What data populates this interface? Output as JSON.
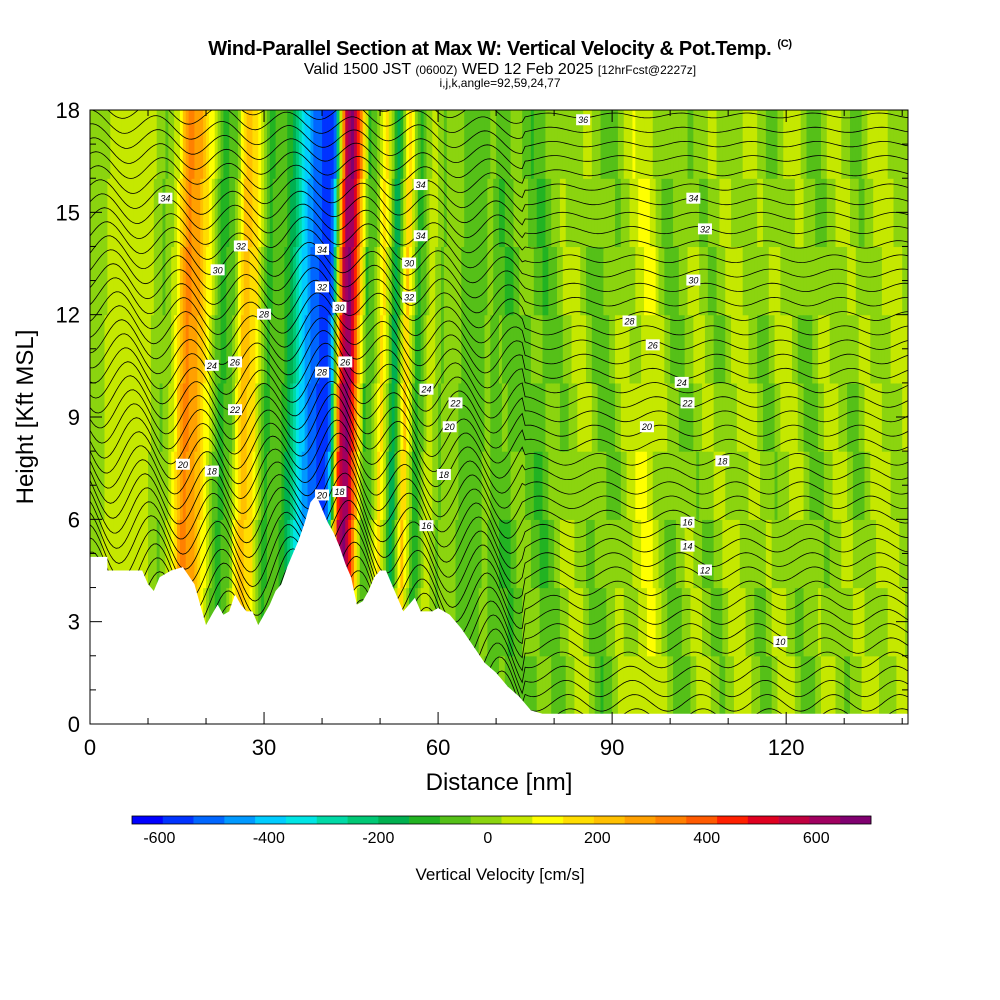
{
  "chart_data": {
    "type": "heatmap",
    "title": "Wind-Parallel Section at Max W: Vertical Velocity & Pot.Temp.",
    "title_mark": "(C)",
    "subtitle_main": "Valid 1500 JST",
    "subtitle_z": "(0600Z)",
    "subtitle_date": "WED 12 Feb 2025",
    "subtitle_fcst": "[12hrFcst@2227z]",
    "subtitle2": "i,j,k,angle=92,59,24,77",
    "xlabel": "Distance [nm]",
    "ylabel": "Height [Kft MSL]",
    "xlim": [
      0,
      141
    ],
    "ylim": [
      0,
      18
    ],
    "x_ticks": [
      "0",
      "30",
      "60",
      "90",
      "120"
    ],
    "x_tick_values": [
      0,
      30,
      60,
      90,
      120
    ],
    "y_ticks": [
      "0",
      "3",
      "6",
      "9",
      "12",
      "15",
      "18"
    ],
    "y_tick_values": [
      0,
      3,
      6,
      9,
      12,
      15,
      18
    ],
    "colorbar": {
      "title": "Vertical Velocity [cm/s]",
      "labels": [
        "-600",
        "-400",
        "-200",
        "0",
        "200",
        "400",
        "600"
      ],
      "label_values": [
        -600,
        -400,
        -200,
        0,
        200,
        400,
        600
      ],
      "range": [
        -650,
        700
      ],
      "colors": [
        "#0000ff",
        "#0033ff",
        "#0066ff",
        "#0099ff",
        "#00ccff",
        "#00e5e5",
        "#00d9a6",
        "#00c875",
        "#00b050",
        "#22b322",
        "#55c018",
        "#8bd40f",
        "#c5e800",
        "#ffff00",
        "#ffdd00",
        "#ffc000",
        "#ffa000",
        "#ff8000",
        "#ff5a00",
        "#ff2000",
        "#e00020",
        "#c00040",
        "#a00060",
        "#800070"
      ]
    },
    "terrain_kft": [
      [
        0,
        4.9
      ],
      [
        3,
        4.9
      ],
      [
        3,
        4.5
      ],
      [
        9,
        4.5
      ],
      [
        10,
        4.1
      ],
      [
        11,
        3.9
      ],
      [
        12,
        4.3
      ],
      [
        14,
        4.5
      ],
      [
        16,
        4.6
      ],
      [
        18,
        4.1
      ],
      [
        19,
        3.5
      ],
      [
        20,
        2.9
      ],
      [
        21,
        3.2
      ],
      [
        22,
        3.5
      ],
      [
        23,
        3.2
      ],
      [
        24,
        3.3
      ],
      [
        25,
        3.8
      ],
      [
        26,
        3.5
      ],
      [
        27,
        3.3
      ],
      [
        28,
        3.3
      ],
      [
        29,
        2.9
      ],
      [
        30,
        3.2
      ],
      [
        31,
        3.5
      ],
      [
        32,
        3.9
      ],
      [
        33,
        4.1
      ],
      [
        34,
        4.6
      ],
      [
        35,
        5.0
      ],
      [
        36,
        5.4
      ],
      [
        37,
        5.9
      ],
      [
        38,
        6.5
      ],
      [
        39,
        6.7
      ],
      [
        40,
        6.3
      ],
      [
        41,
        5.9
      ],
      [
        42,
        5.6
      ],
      [
        43,
        5.2
      ],
      [
        44,
        4.7
      ],
      [
        45,
        4.3
      ],
      [
        46,
        3.5
      ],
      [
        47,
        3.6
      ],
      [
        48,
        3.9
      ],
      [
        49,
        4.3
      ],
      [
        50,
        4.5
      ],
      [
        51,
        4.5
      ],
      [
        52,
        4.1
      ],
      [
        53,
        3.7
      ],
      [
        54,
        3.3
      ],
      [
        55,
        3.5
      ],
      [
        56,
        3.7
      ],
      [
        57,
        3.3
      ],
      [
        58,
        3.3
      ],
      [
        59,
        3.3
      ],
      [
        60,
        3.4
      ],
      [
        62,
        3.2
      ],
      [
        64,
        2.8
      ],
      [
        66,
        2.3
      ],
      [
        68,
        1.8
      ],
      [
        70,
        1.5
      ],
      [
        72,
        1.1
      ],
      [
        74,
        0.8
      ],
      [
        76,
        0.4
      ],
      [
        78,
        0.3
      ],
      [
        141,
        0.3
      ]
    ],
    "w_profile": [
      [
        0,
        10
      ],
      [
        3,
        30
      ],
      [
        6,
        60
      ],
      [
        9,
        70
      ],
      [
        12,
        -40
      ],
      [
        14,
        60
      ],
      [
        16,
        330
      ],
      [
        18,
        260
      ],
      [
        20,
        90
      ],
      [
        22,
        -110
      ],
      [
        24,
        -60
      ],
      [
        26,
        230
      ],
      [
        28,
        140
      ],
      [
        30,
        -110
      ],
      [
        32,
        -40
      ],
      [
        34,
        -160
      ],
      [
        36,
        -370
      ],
      [
        38,
        -520
      ],
      [
        40,
        -560
      ],
      [
        41,
        -520
      ],
      [
        42,
        60
      ],
      [
        43,
        560
      ],
      [
        44,
        660
      ],
      [
        45,
        470
      ],
      [
        46,
        180
      ],
      [
        47,
        -90
      ],
      [
        48,
        -70
      ],
      [
        50,
        170
      ],
      [
        52,
        -200
      ],
      [
        54,
        200
      ],
      [
        56,
        -140
      ],
      [
        58,
        70
      ],
      [
        60,
        -40
      ],
      [
        62,
        10
      ],
      [
        64,
        -50
      ],
      [
        66,
        -80
      ],
      [
        68,
        -20
      ],
      [
        70,
        -50
      ],
      [
        72,
        -70
      ],
      [
        74,
        -20
      ],
      [
        76,
        -50
      ],
      [
        78,
        -70
      ],
      [
        80,
        -20
      ],
      [
        84,
        30
      ],
      [
        88,
        -50
      ],
      [
        92,
        20
      ],
      [
        96,
        80
      ],
      [
        100,
        -40
      ],
      [
        104,
        10
      ],
      [
        108,
        -10
      ],
      [
        112,
        40
      ],
      [
        116,
        -20
      ],
      [
        120,
        30
      ],
      [
        124,
        -30
      ],
      [
        128,
        20
      ],
      [
        132,
        -10
      ],
      [
        136,
        40
      ],
      [
        141,
        10
      ]
    ],
    "theta_contour_labels": [
      "10",
      "12",
      "14",
      "16",
      "16",
      "18",
      "18",
      "18",
      "18",
      "20",
      "20",
      "20",
      "20",
      "22",
      "22",
      "22",
      "24",
      "24",
      "24",
      "26",
      "26",
      "26",
      "28",
      "28",
      "28",
      "30",
      "30",
      "30",
      "30",
      "32",
      "32",
      "32",
      "32",
      "34",
      "34",
      "34",
      "34",
      "34",
      "36"
    ],
    "theta_contour_positions": [
      [
        119,
        2.4
      ],
      [
        106,
        4.5
      ],
      [
        103,
        5.2
      ],
      [
        103,
        5.9
      ],
      [
        58,
        5.8
      ],
      [
        109,
        7.7
      ],
      [
        61,
        7.3
      ],
      [
        43,
        6.8
      ],
      [
        21,
        7.4
      ],
      [
        96,
        8.7
      ],
      [
        62,
        8.7
      ],
      [
        16,
        7.6
      ],
      [
        40,
        6.7
      ],
      [
        103,
        9.4
      ],
      [
        63,
        9.4
      ],
      [
        25,
        9.2
      ],
      [
        102,
        10.0
      ],
      [
        58,
        9.8
      ],
      [
        21,
        10.5
      ],
      [
        97,
        11.1
      ],
      [
        25,
        10.6
      ],
      [
        44,
        10.6
      ],
      [
        93,
        11.8
      ],
      [
        30,
        12.0
      ],
      [
        40,
        10.3
      ],
      [
        104,
        13.0
      ],
      [
        43,
        12.2
      ],
      [
        55,
        13.5
      ],
      [
        22,
        13.3
      ],
      [
        106,
        14.5
      ],
      [
        55,
        12.5
      ],
      [
        40,
        12.8
      ],
      [
        26,
        14.0
      ],
      [
        104,
        15.4
      ],
      [
        57,
        15.8
      ],
      [
        13,
        15.4
      ],
      [
        40,
        13.9
      ],
      [
        57,
        14.3
      ],
      [
        85,
        17.7
      ]
    ]
  }
}
